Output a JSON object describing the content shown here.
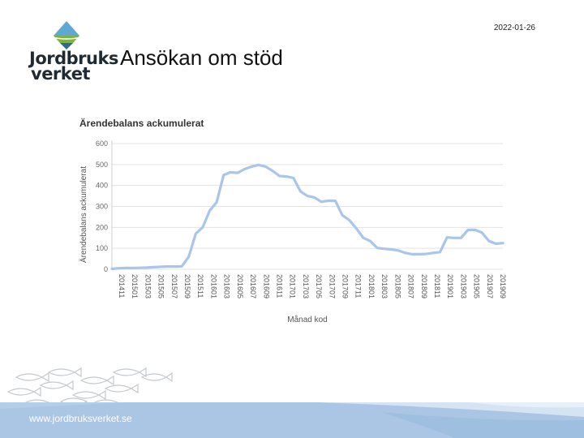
{
  "header": {
    "date": "2022-01-26",
    "title": "Ansökan om stöd",
    "logo_line1": "Jordbruks",
    "logo_line2": "verket"
  },
  "footer": {
    "url": "www.jordbruksverket.se"
  },
  "colors": {
    "series": "#a9c6ea",
    "footer_band": "#b4cde8",
    "grid": "#e3e3e3"
  },
  "chart_data": {
    "type": "line",
    "title": "Ärendebalans ackumulerat",
    "xlabel": "Månad kod",
    "ylabel": "Ärendebalans ackumulerat",
    "ylim": [
      0,
      600
    ],
    "yticks": [
      0,
      100,
      200,
      300,
      400,
      500,
      600
    ],
    "grid": true,
    "xtick_labels": [
      "201411",
      "201501",
      "201503",
      "201505",
      "201507",
      "201509",
      "201511",
      "201601",
      "201603",
      "201605",
      "201607",
      "201609",
      "201611",
      "201701",
      "201703",
      "201705",
      "201707",
      "201709",
      "201711",
      "201801",
      "201803",
      "201805",
      "201807",
      "201809",
      "201811",
      "201901",
      "201903",
      "201905",
      "201907",
      "201909"
    ],
    "series": [
      {
        "values": [
          2,
          5,
          6,
          6,
          7,
          8,
          10,
          12,
          13,
          13,
          14,
          60,
          170,
          200,
          280,
          320,
          450,
          463,
          460,
          478,
          490,
          498,
          490,
          470,
          445,
          443,
          436,
          372,
          350,
          343,
          322,
          327,
          327,
          258,
          235,
          195,
          150,
          135,
          102,
          98,
          95,
          90,
          78,
          72,
          72,
          73,
          78,
          82,
          152,
          150,
          150,
          188,
          188,
          175,
          135,
          122,
          125
        ]
      }
    ]
  }
}
